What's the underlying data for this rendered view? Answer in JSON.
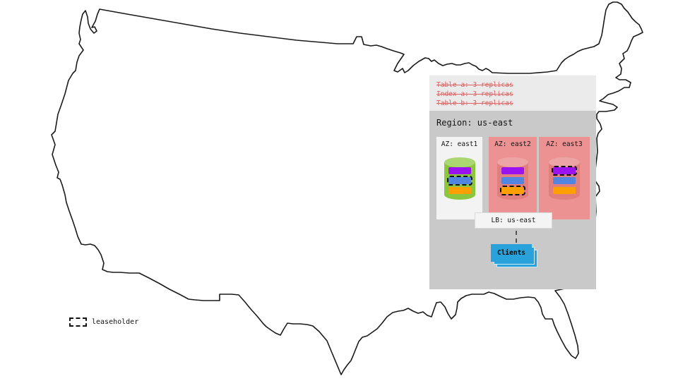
{
  "map": {
    "name": "united-states-outline",
    "stroke_color": "#1a1a1a"
  },
  "notes": {
    "strikethrough": true,
    "color": "#dd5f5f",
    "items": [
      {
        "text": "Table a: 3 replicas"
      },
      {
        "text": "Index a: 3 replicas"
      },
      {
        "text": "Table b: 3 replicas"
      }
    ]
  },
  "region": {
    "title": "Region: us-east",
    "zones": [
      {
        "label": "AZ: east1",
        "highlight": false,
        "cylinder": "green",
        "replicas": [
          {
            "color": "#9b12f1",
            "leaseholder": false
          },
          {
            "color": "#5285e0",
            "leaseholder": true
          },
          {
            "color": "#ffa000",
            "leaseholder": false
          }
        ]
      },
      {
        "label": "AZ: east2",
        "highlight": true,
        "cylinder": "red",
        "replicas": [
          {
            "color": "#9b12f1",
            "leaseholder": false
          },
          {
            "color": "#5285e0",
            "leaseholder": false
          },
          {
            "color": "#ffa000",
            "leaseholder": true
          }
        ]
      },
      {
        "label": "AZ: east3",
        "highlight": true,
        "cylinder": "red",
        "replicas": [
          {
            "color": "#9b12f1",
            "leaseholder": true
          },
          {
            "color": "#5285e0",
            "leaseholder": false
          },
          {
            "color": "#ffa000",
            "leaseholder": false
          }
        ]
      }
    ],
    "load_balancer": {
      "label": "LB: us-east"
    },
    "clients": {
      "label": "Clients",
      "color": "#29a2dc"
    }
  },
  "legend": {
    "label": "leaseholder"
  },
  "colors": {
    "notes_bg": "#ebebeb",
    "region_bg": "#c9c9c9",
    "az_normal_bg": "#f3f3f3",
    "az_highlight_bg": "#ec9292",
    "cylinder_green": "#8cc63f",
    "cylinder_red": "#e17e7e",
    "replica_purple": "#9b12f1",
    "replica_blue": "#5285e0",
    "replica_orange": "#ffa000",
    "clients_blue": "#29a2dc"
  }
}
